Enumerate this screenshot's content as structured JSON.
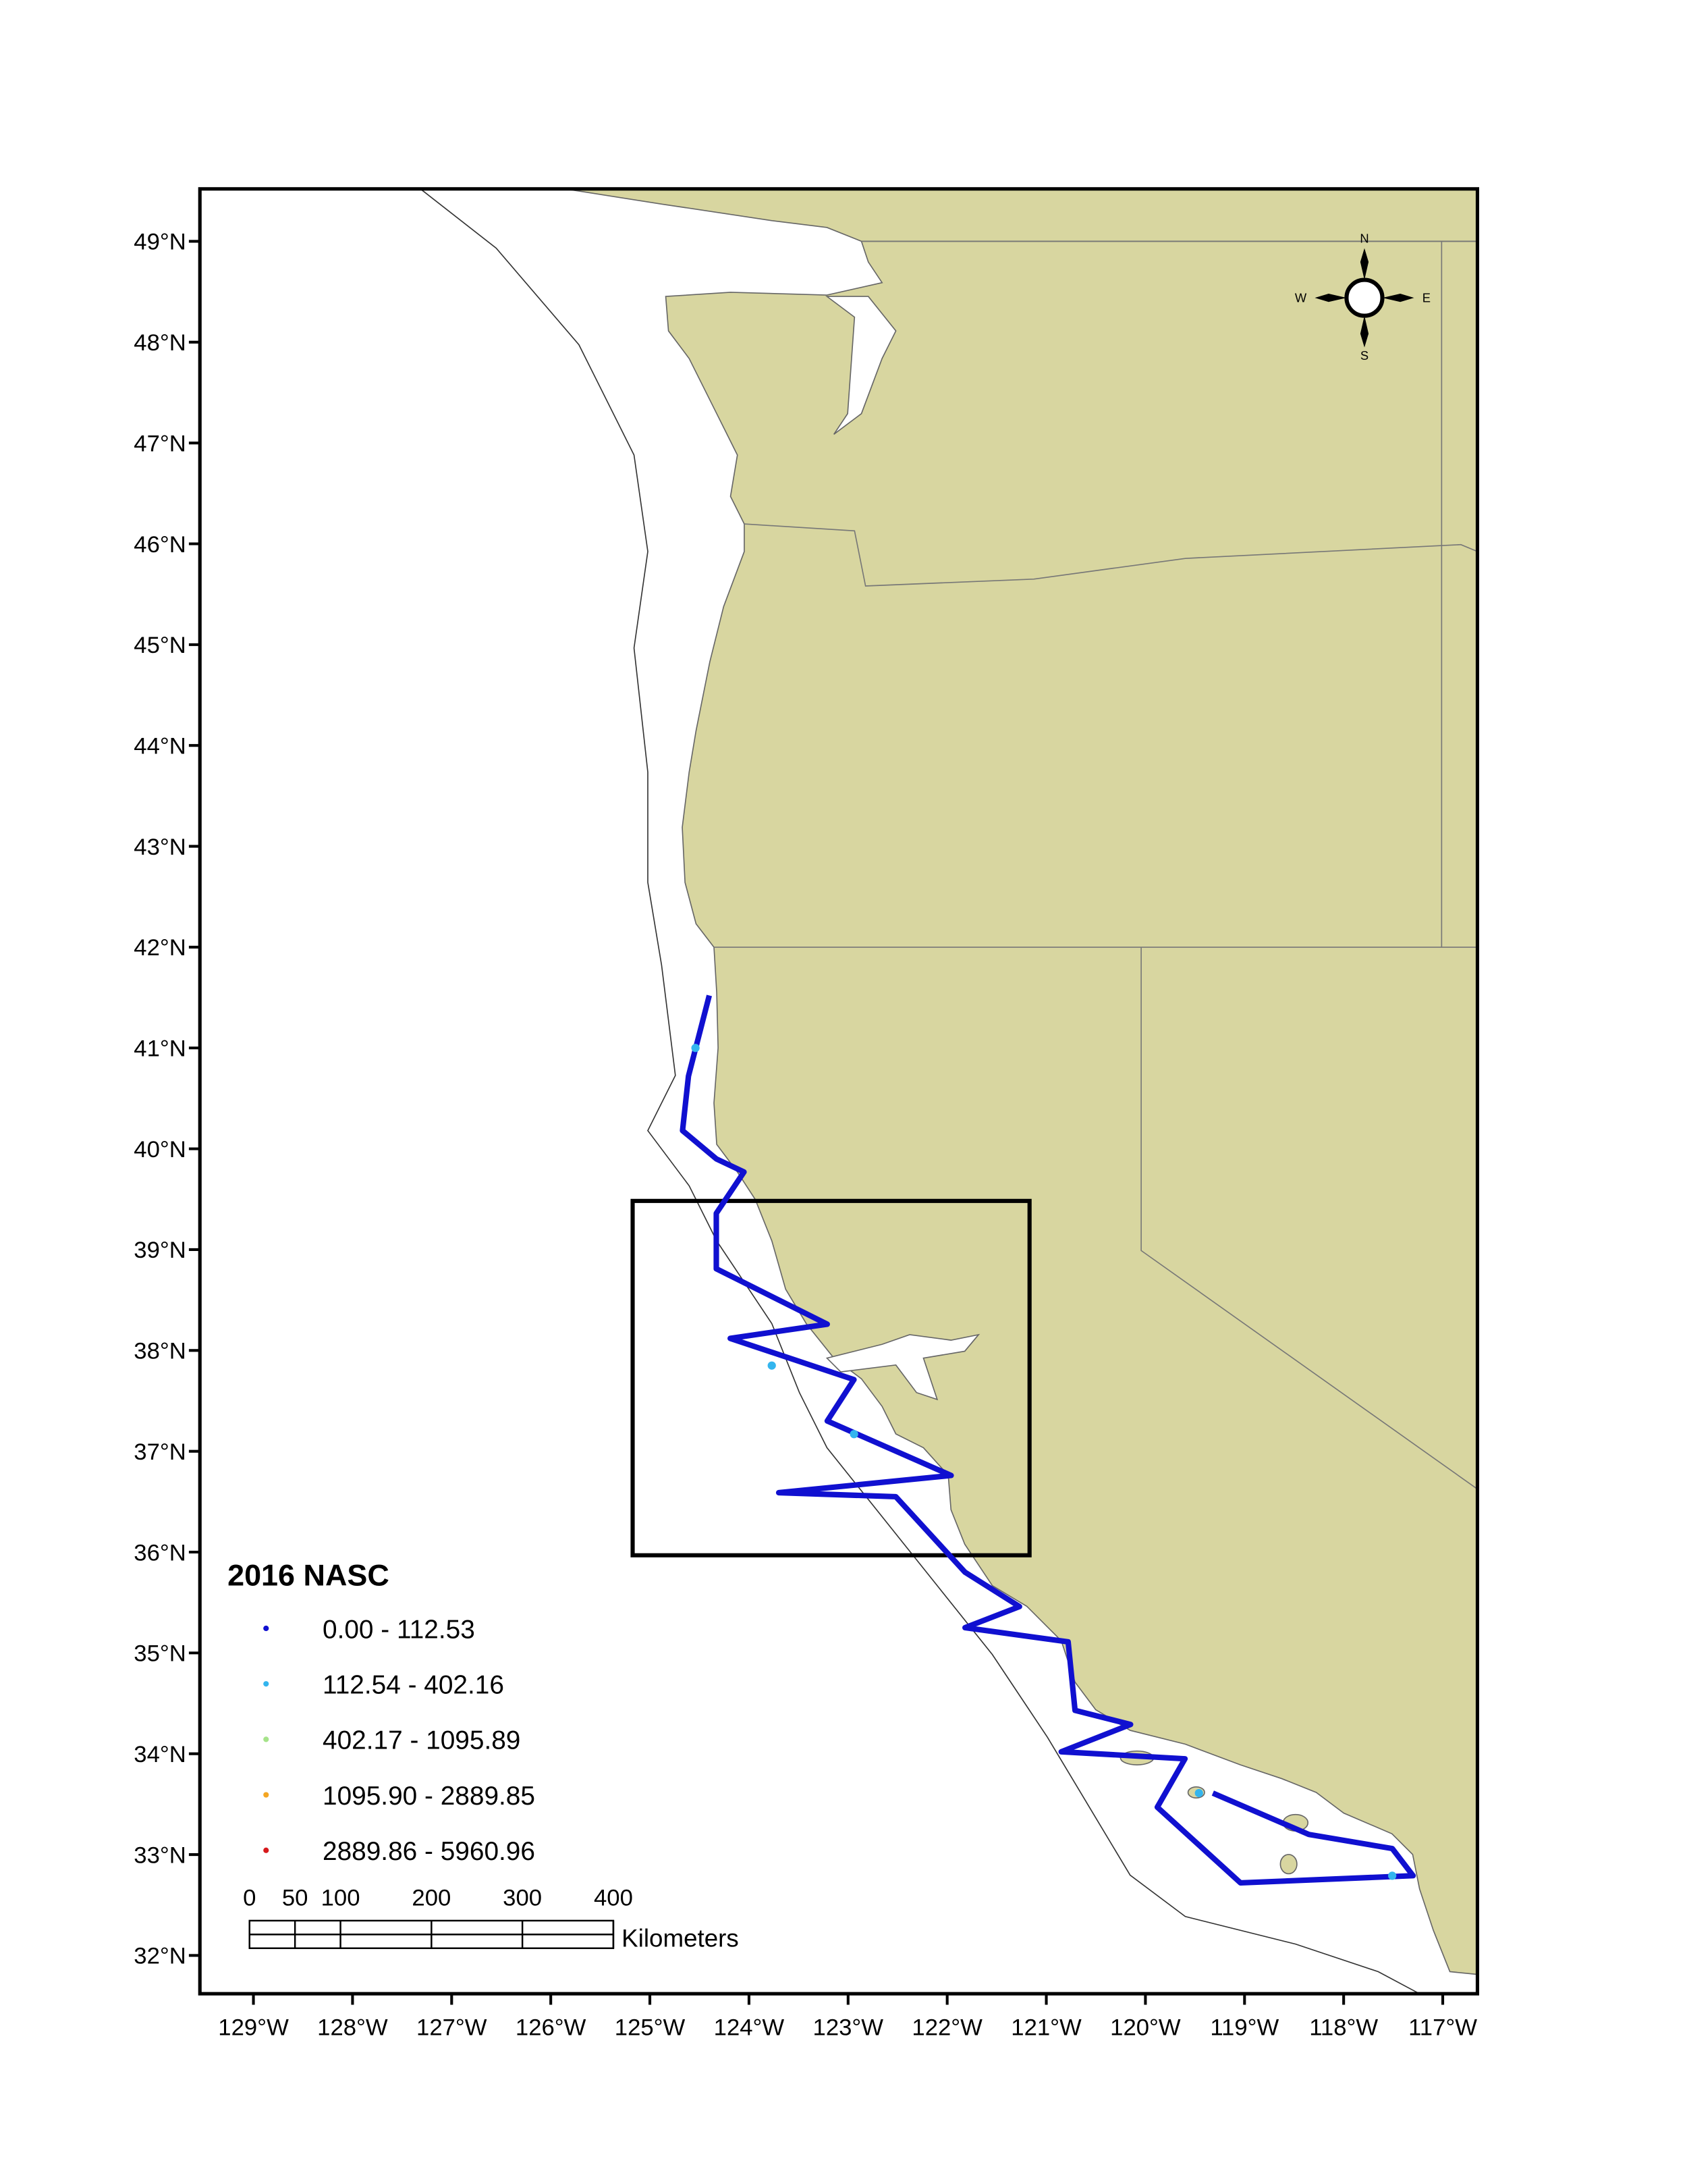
{
  "chart_data": {
    "type": "map",
    "legend_title": "2016 NASC",
    "land_color": "#d8d6a0",
    "xlim": [
      -129.54,
      -116.65
    ],
    "ylim": [
      31.62,
      49.52
    ],
    "xticks": [
      {
        "value": -129,
        "label": "129°W"
      },
      {
        "value": -128,
        "label": "128°W"
      },
      {
        "value": -127,
        "label": "127°W"
      },
      {
        "value": -126,
        "label": "126°W"
      },
      {
        "value": -125,
        "label": "125°W"
      },
      {
        "value": -124,
        "label": "124°W"
      },
      {
        "value": -123,
        "label": "123°W"
      },
      {
        "value": -122,
        "label": "122°W"
      },
      {
        "value": -121,
        "label": "121°W"
      },
      {
        "value": -120,
        "label": "120°W"
      },
      {
        "value": -119,
        "label": "119°W"
      },
      {
        "value": -118,
        "label": "118°W"
      },
      {
        "value": -117,
        "label": "117°W"
      }
    ],
    "yticks": [
      {
        "value": 49,
        "label": "49°N"
      },
      {
        "value": 48,
        "label": "48°N"
      },
      {
        "value": 47,
        "label": "47°N"
      },
      {
        "value": 46,
        "label": "46°N"
      },
      {
        "value": 45,
        "label": "45°N"
      },
      {
        "value": 44,
        "label": "44°N"
      },
      {
        "value": 43,
        "label": "43°N"
      },
      {
        "value": 42,
        "label": "42°N"
      },
      {
        "value": 41,
        "label": "41°N"
      },
      {
        "value": 40,
        "label": "40°N"
      },
      {
        "value": 39,
        "label": "39°N"
      },
      {
        "value": 38,
        "label": "38°N"
      },
      {
        "value": 37,
        "label": "37°N"
      },
      {
        "value": 36,
        "label": "36°N"
      },
      {
        "value": 35,
        "label": "35°N"
      },
      {
        "value": 34,
        "label": "34°N"
      },
      {
        "value": 33,
        "label": "33°N"
      },
      {
        "value": 32,
        "label": "32°N"
      }
    ],
    "series": [
      {
        "name": "0.00 - 112.53",
        "color": "#1010d0",
        "x": [
          -124.4,
          -124.61,
          -124.67,
          -124.33,
          -124.05,
          -124.33,
          -124.33,
          -123.21,
          -124.19,
          -122.94,
          -123.21,
          -121.96,
          -123.7,
          -122.52,
          -121.82,
          -121.27,
          -121.82,
          -120.78,
          -120.71,
          -120.15,
          -120.85,
          -119.6,
          -119.88,
          -119.04,
          -117.3,
          -117.51,
          -118.35,
          -119.32
        ],
        "y": [
          41.52,
          40.72,
          40.18,
          39.9,
          39.77,
          39.36,
          38.81,
          38.26,
          38.12,
          37.71,
          37.3,
          36.76,
          36.59,
          36.55,
          35.8,
          35.46,
          35.25,
          35.11,
          34.43,
          34.29,
          34.02,
          33.95,
          33.47,
          32.72,
          32.79,
          33.06,
          33.2,
          33.61
        ]
      },
      {
        "name": "112.54 - 402.16",
        "color": "#33b5ee",
        "x": [
          -124.54,
          -123.77,
          -122.94,
          -119.46,
          -117.51
        ],
        "y": [
          41.0,
          37.85,
          37.17,
          33.61,
          32.79
        ]
      },
      {
        "name": "402.17 - 1095.89",
        "color": "#a6e38a"
      },
      {
        "name": "1095.90 - 2889.85",
        "color": "#f4a623"
      },
      {
        "name": "2889.86 - 5960.96",
        "color": "#d7191c"
      }
    ],
    "scale_bar": {
      "ticks": [
        0,
        50,
        100,
        200,
        300,
        400
      ],
      "unit": "Kilometers"
    },
    "compass": {
      "n": "N",
      "e": "E",
      "s": "S",
      "w": "W"
    }
  }
}
